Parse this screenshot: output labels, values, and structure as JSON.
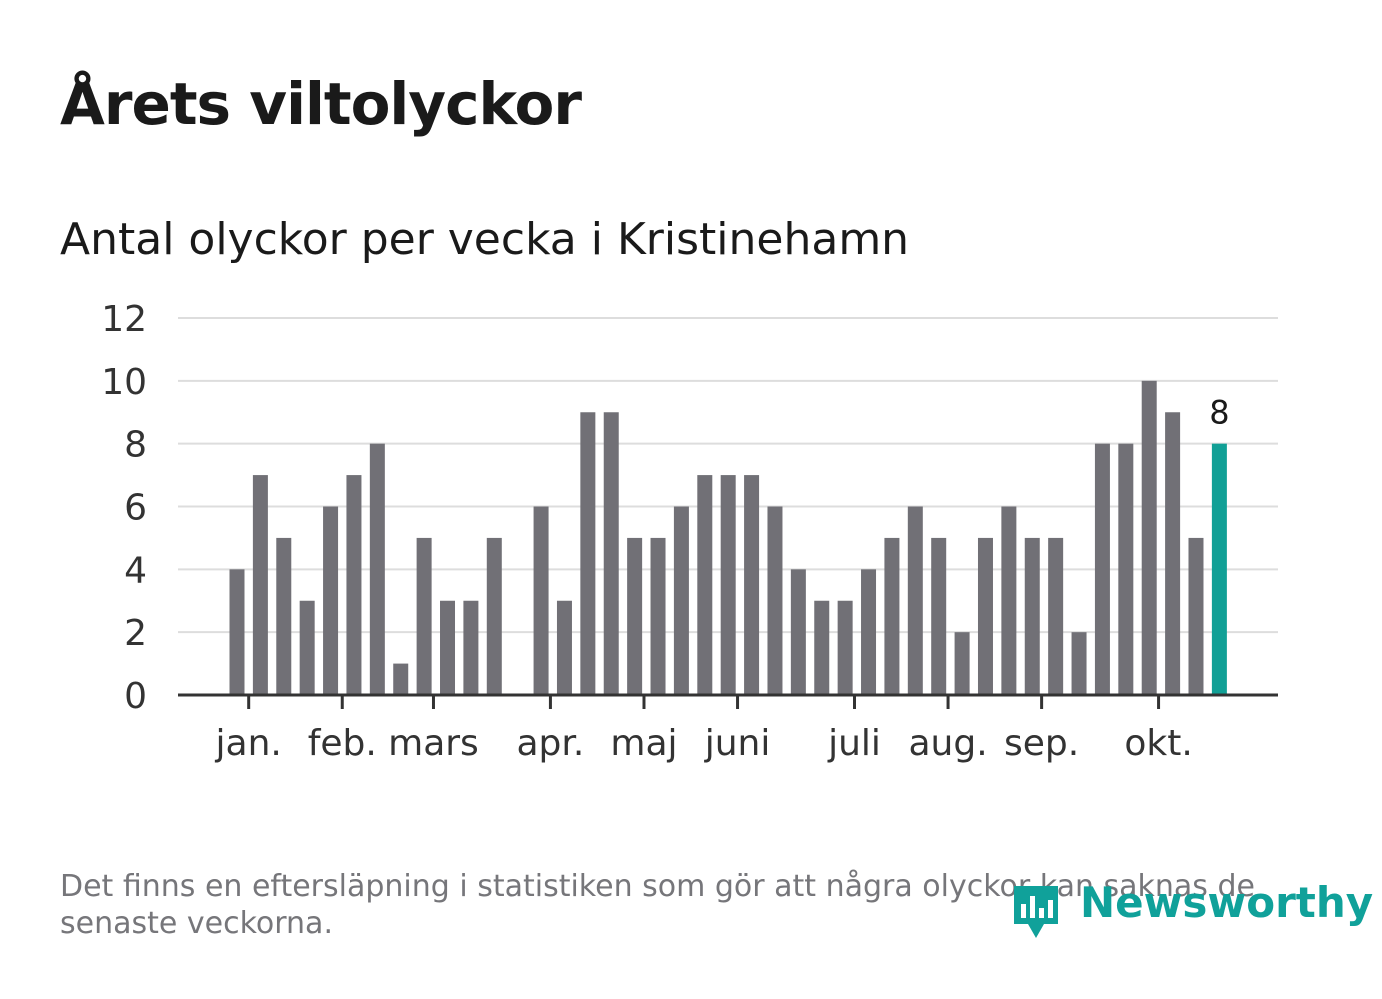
{
  "title": "Årets viltolyckor",
  "subtitle": "Antal olyckor per vecka i Kristinehamn",
  "footnote": "Det finns en eftersläpning i statistiken som gör att några olyckor kan saknas de senaste veckorna.",
  "brand": "Newsworthy",
  "colors": {
    "bar": "#717076",
    "highlight": "#11a096",
    "grid": "#dddddd",
    "axis": "#333333",
    "text": "#1a1a1a",
    "muted": "#76767a"
  },
  "chart_data": {
    "type": "bar",
    "title": "Antal olyckor per vecka i Kristinehamn",
    "xlabel": "",
    "ylabel": "",
    "ylim": [
      0,
      12
    ],
    "yticks": [
      0,
      2,
      4,
      6,
      8,
      10,
      12
    ],
    "grid": true,
    "weeks": [
      1,
      2,
      3,
      4,
      5,
      6,
      7,
      8,
      9,
      10,
      11,
      12,
      13,
      14,
      15,
      16,
      17,
      18,
      19,
      20,
      21,
      22,
      23,
      24,
      25,
      26,
      27,
      28,
      29,
      30,
      31,
      32,
      33,
      34,
      35,
      36,
      37,
      38,
      39,
      40,
      41,
      42,
      43,
      44
    ],
    "values": [
      4,
      7,
      5,
      3,
      6,
      7,
      8,
      1,
      5,
      3,
      3,
      5,
      0,
      6,
      3,
      9,
      9,
      5,
      5,
      6,
      7,
      7,
      7,
      6,
      4,
      3,
      3,
      4,
      5,
      6,
      5,
      2,
      5,
      6,
      5,
      5,
      2,
      8,
      8,
      10,
      9,
      5,
      8,
      null
    ],
    "highlight_index": 42,
    "highlight_label": "8",
    "month_ticks": [
      {
        "label": "jan.",
        "week": 1.5
      },
      {
        "label": "feb.",
        "week": 5.5
      },
      {
        "label": "mars",
        "week": 9.4
      },
      {
        "label": "apr.",
        "week": 14.4
      },
      {
        "label": "maj",
        "week": 18.4
      },
      {
        "label": "juni",
        "week": 22.4
      },
      {
        "label": "juli",
        "week": 27.4
      },
      {
        "label": "aug.",
        "week": 31.4
      },
      {
        "label": "sep.",
        "week": 35.4
      },
      {
        "label": "okt.",
        "week": 40.4
      }
    ]
  }
}
